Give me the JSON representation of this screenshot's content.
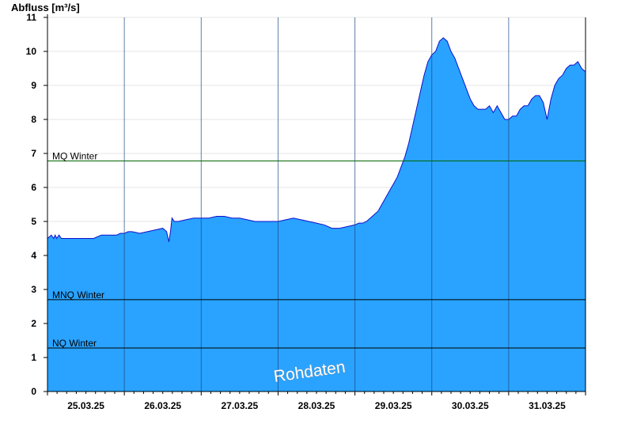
{
  "chart_data": {
    "type": "area",
    "title": "",
    "ylabel": "Abfluss [m³/s]",
    "xlabel": "",
    "ylim": [
      0,
      11
    ],
    "yticks": [
      0,
      1,
      2,
      3,
      4,
      5,
      6,
      7,
      8,
      9,
      10,
      11
    ],
    "xlim": [
      0,
      7
    ],
    "day_ticks": [
      "25.03.25",
      "26.03.25",
      "27.03.25",
      "28.03.25",
      "29.03.25",
      "30.03.25",
      "31.03.25"
    ],
    "grid": true,
    "watermark": "Rohdaten",
    "colors": {
      "fill": "#29a3ff",
      "line": "#1010cc",
      "mq": "#006400",
      "ref": "#000000"
    },
    "reference_lines": [
      {
        "label": "MQ Winter",
        "value": 6.78
      },
      {
        "label": "MNQ Winter",
        "value": 2.7
      },
      {
        "label": "NQ Winter",
        "value": 1.28
      }
    ],
    "series": [
      {
        "x": [
          0,
          0.05,
          0.08,
          0.1,
          0.12,
          0.15,
          0.18,
          0.2,
          0.25,
          0.3,
          0.4,
          0.5,
          0.55,
          0.6,
          0.7,
          0.8,
          0.9,
          0.95,
          1.0,
          1.05,
          1.1,
          1.2,
          1.3,
          1.4,
          1.5,
          1.55,
          1.58,
          1.6,
          1.62,
          1.65,
          1.7,
          1.8,
          1.9,
          2.0,
          2.1,
          2.2,
          2.3,
          2.4,
          2.5,
          2.6,
          2.7,
          2.8,
          2.9,
          3.0,
          3.1,
          3.2,
          3.3,
          3.4,
          3.5,
          3.6,
          3.7,
          3.8,
          3.9,
          4.0,
          4.05,
          4.1,
          4.15,
          4.2,
          4.25,
          4.3,
          4.35,
          4.4,
          4.45,
          4.5,
          4.55,
          4.6,
          4.65,
          4.7,
          4.75,
          4.8,
          4.85,
          4.9,
          4.95,
          5.0,
          5.05,
          5.1,
          5.15,
          5.2,
          5.25,
          5.3,
          5.35,
          5.4,
          5.45,
          5.5,
          5.55,
          5.6,
          5.65,
          5.7,
          5.75,
          5.8,
          5.85,
          5.9,
          5.95,
          6.0,
          6.05,
          6.1,
          6.15,
          6.2,
          6.25,
          6.3,
          6.35,
          6.4,
          6.45,
          6.5,
          6.55,
          6.6,
          6.65,
          6.7,
          6.75,
          6.8,
          6.85,
          6.9,
          6.95,
          7.0
        ],
        "y": [
          4.5,
          4.6,
          4.5,
          4.6,
          4.5,
          4.6,
          4.5,
          4.5,
          4.5,
          4.5,
          4.5,
          4.5,
          4.5,
          4.5,
          4.6,
          4.6,
          4.6,
          4.65,
          4.65,
          4.7,
          4.7,
          4.65,
          4.7,
          4.75,
          4.8,
          4.7,
          4.4,
          4.7,
          5.1,
          5.0,
          5.0,
          5.05,
          5.1,
          5.1,
          5.1,
          5.15,
          5.15,
          5.1,
          5.1,
          5.05,
          5.0,
          5.0,
          5.0,
          5.0,
          5.05,
          5.1,
          5.05,
          5.0,
          4.95,
          4.9,
          4.8,
          4.8,
          4.85,
          4.9,
          4.95,
          4.95,
          5.0,
          5.1,
          5.2,
          5.3,
          5.5,
          5.7,
          5.9,
          6.1,
          6.3,
          6.6,
          6.9,
          7.3,
          7.8,
          8.3,
          8.8,
          9.3,
          9.7,
          9.9,
          10.0,
          10.3,
          10.4,
          10.3,
          10.0,
          9.8,
          9.5,
          9.2,
          8.9,
          8.6,
          8.4,
          8.3,
          8.3,
          8.3,
          8.4,
          8.2,
          8.4,
          8.2,
          8.0,
          8.0,
          8.1,
          8.1,
          8.3,
          8.4,
          8.4,
          8.6,
          8.7,
          8.7,
          8.5,
          8.0,
          8.6,
          9.0,
          9.2,
          9.3,
          9.5,
          9.6,
          9.6,
          9.7,
          9.5,
          9.4
        ]
      }
    ]
  }
}
